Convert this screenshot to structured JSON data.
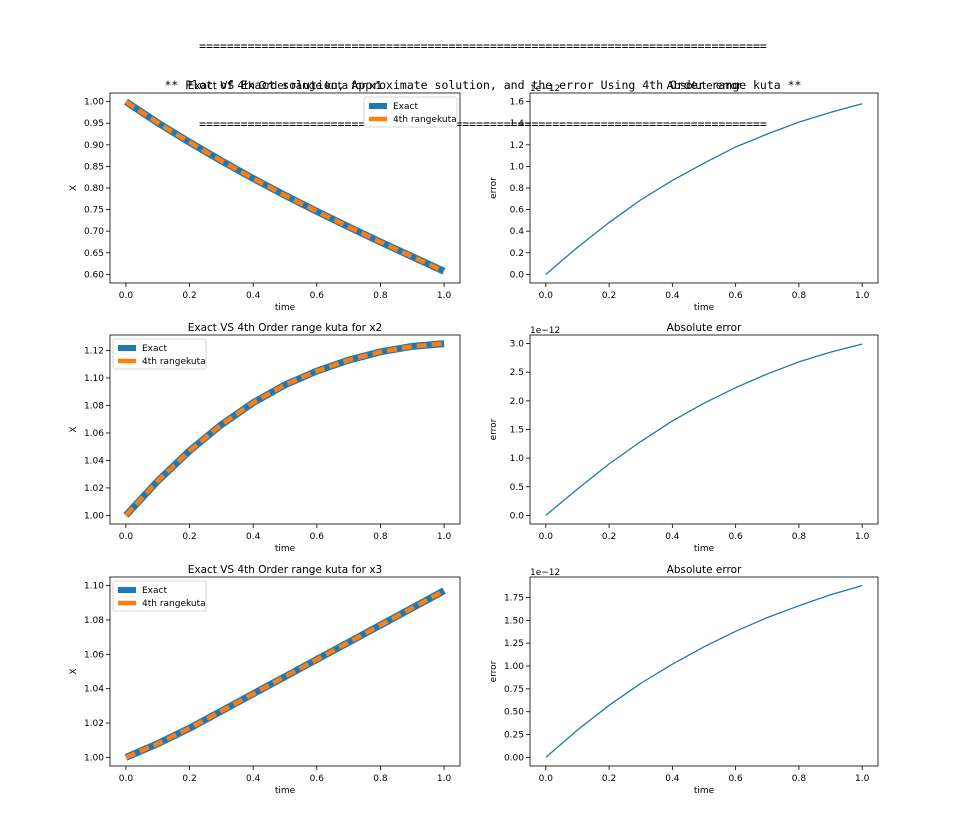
{
  "header": {
    "rule": "==================================================================================",
    "title": "** Plot of Exact solution, Approximate solution, and the error Using 4th Order range kuta **"
  },
  "colors": {
    "exact": "#1f77b4",
    "rk4": "#ff7f0e",
    "error": "#1f77b4"
  },
  "chart_data": [
    {
      "type": "line",
      "title": "Exact VS 4th Order range kuta for x1",
      "xlabel": "time",
      "ylabel": "X",
      "xlim": [
        0,
        1
      ],
      "ylim": [
        0.6,
        1.0
      ],
      "xticks": [
        "0.0",
        "0.2",
        "0.4",
        "0.6",
        "0.8",
        "1.0"
      ],
      "yticks": [
        "0.60",
        "0.65",
        "0.70",
        "0.75",
        "0.80",
        "0.85",
        "0.90",
        "0.95",
        "1.00"
      ],
      "offset_text": "",
      "legend": "top-right",
      "x": [
        0.0,
        0.1,
        0.2,
        0.3,
        0.4,
        0.5,
        0.6,
        0.7,
        0.8,
        0.9,
        1.0
      ],
      "series": [
        {
          "name": "Exact",
          "values": [
            1.0,
            0.951,
            0.906,
            0.863,
            0.822,
            0.783,
            0.746,
            0.71,
            0.675,
            0.641,
            0.607
          ]
        },
        {
          "name": "4th rangekuta",
          "values": [
            1.0,
            0.951,
            0.906,
            0.863,
            0.822,
            0.783,
            0.746,
            0.71,
            0.675,
            0.641,
            0.607
          ]
        }
      ]
    },
    {
      "type": "line",
      "title": "Absolute error",
      "xlabel": "time",
      "ylabel": "error",
      "xlim": [
        0,
        1
      ],
      "ylim": [
        0,
        1.6
      ],
      "xticks": [
        "0.0",
        "0.2",
        "0.4",
        "0.6",
        "0.8",
        "1.0"
      ],
      "yticks": [
        "0.0",
        "0.2",
        "0.4",
        "0.6",
        "0.8",
        "1.0",
        "1.2",
        "1.4",
        "1.6"
      ],
      "offset_text": "1e−12",
      "legend": "none",
      "x": [
        0.0,
        0.1,
        0.2,
        0.3,
        0.4,
        0.5,
        0.6,
        0.7,
        0.8,
        0.9,
        1.0
      ],
      "series": [
        {
          "name": "",
          "values": [
            0.0,
            0.25,
            0.48,
            0.69,
            0.87,
            1.03,
            1.18,
            1.3,
            1.41,
            1.5,
            1.58
          ]
        }
      ]
    },
    {
      "type": "line",
      "title": "Exact VS 4th Order range kuta for x2",
      "xlabel": "time",
      "ylabel": "X",
      "xlim": [
        0,
        1
      ],
      "ylim": [
        1.0,
        1.12
      ],
      "xticks": [
        "0.0",
        "0.2",
        "0.4",
        "0.6",
        "0.8",
        "1.0"
      ],
      "yticks": [
        "1.00",
        "1.02",
        "1.04",
        "1.06",
        "1.08",
        "1.10",
        "1.12"
      ],
      "offset_text": "",
      "legend": "top-left",
      "x": [
        0.0,
        0.1,
        0.2,
        0.3,
        0.4,
        0.5,
        0.6,
        0.7,
        0.8,
        0.9,
        1.0
      ],
      "series": [
        {
          "name": "Exact",
          "values": [
            1.0,
            1.025,
            1.047,
            1.066,
            1.082,
            1.095,
            1.105,
            1.113,
            1.119,
            1.123,
            1.125
          ]
        },
        {
          "name": "4th rangekuta",
          "values": [
            1.0,
            1.025,
            1.047,
            1.066,
            1.082,
            1.095,
            1.105,
            1.113,
            1.119,
            1.123,
            1.125
          ]
        }
      ]
    },
    {
      "type": "line",
      "title": "Absolute error",
      "xlabel": "time",
      "ylabel": "error",
      "xlim": [
        0,
        1
      ],
      "ylim": [
        0,
        3.0
      ],
      "xticks": [
        "0.0",
        "0.2",
        "0.4",
        "0.6",
        "0.8",
        "1.0"
      ],
      "yticks": [
        "0.0",
        "0.5",
        "1.0",
        "1.5",
        "2.0",
        "2.5",
        "3.0"
      ],
      "offset_text": "1e−12",
      "legend": "none",
      "x": [
        0.0,
        0.1,
        0.2,
        0.3,
        0.4,
        0.5,
        0.6,
        0.7,
        0.8,
        0.9,
        1.0
      ],
      "series": [
        {
          "name": "",
          "values": [
            0.0,
            0.46,
            0.9,
            1.29,
            1.65,
            1.96,
            2.23,
            2.47,
            2.68,
            2.85,
            2.99
          ]
        }
      ]
    },
    {
      "type": "line",
      "title": "Exact VS 4th Order range kuta for x3",
      "xlabel": "time",
      "ylabel": "X",
      "xlim": [
        0,
        1
      ],
      "ylim": [
        1.0,
        1.1
      ],
      "xticks": [
        "0.0",
        "0.2",
        "0.4",
        "0.6",
        "0.8",
        "1.0"
      ],
      "yticks": [
        "1.00",
        "1.02",
        "1.04",
        "1.06",
        "1.08",
        "1.10"
      ],
      "offset_text": "",
      "legend": "top-left",
      "x": [
        0.0,
        0.1,
        0.2,
        0.3,
        0.4,
        0.5,
        0.6,
        0.7,
        0.8,
        0.9,
        1.0
      ],
      "series": [
        {
          "name": "Exact",
          "values": [
            1.0,
            1.008,
            1.017,
            1.027,
            1.037,
            1.047,
            1.057,
            1.067,
            1.077,
            1.087,
            1.097
          ]
        },
        {
          "name": "4th rangekuta",
          "values": [
            1.0,
            1.008,
            1.017,
            1.027,
            1.037,
            1.047,
            1.057,
            1.067,
            1.077,
            1.087,
            1.097
          ]
        }
      ]
    },
    {
      "type": "line",
      "title": "Absolute error",
      "xlabel": "time",
      "ylabel": "error",
      "xlim": [
        0,
        1
      ],
      "ylim": [
        0,
        1.75
      ],
      "xticks": [
        "0.0",
        "0.2",
        "0.4",
        "0.6",
        "0.8",
        "1.0"
      ],
      "yticks": [
        "0.00",
        "0.25",
        "0.50",
        "0.75",
        "1.00",
        "1.25",
        "1.50",
        "1.75"
      ],
      "offset_text": "1e−12",
      "legend": "none",
      "x": [
        0.0,
        0.1,
        0.2,
        0.3,
        0.4,
        0.5,
        0.6,
        0.7,
        0.8,
        0.9,
        1.0
      ],
      "series": [
        {
          "name": "",
          "values": [
            0.0,
            0.3,
            0.57,
            0.81,
            1.02,
            1.21,
            1.38,
            1.53,
            1.66,
            1.78,
            1.88
          ]
        }
      ]
    }
  ]
}
